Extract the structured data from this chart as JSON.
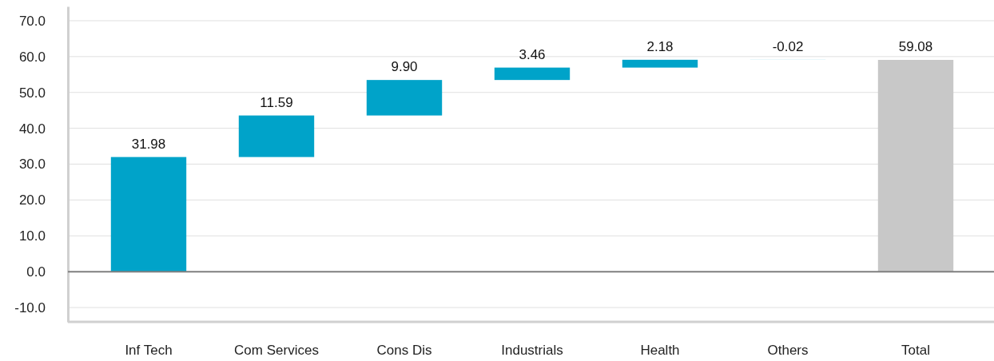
{
  "chart_data": {
    "type": "bar",
    "categories": [
      "Inf Tech",
      "Com Services",
      "Cons Dis",
      "Industrials",
      "Health",
      "Others",
      "Total"
    ],
    "values": [
      31.98,
      11.59,
      9.9,
      3.46,
      2.18,
      -0.02,
      59.08
    ],
    "base": [
      0,
      31.98,
      43.57,
      53.47,
      56.93,
      59.11,
      0
    ],
    "colors": [
      "#00a3c9",
      "#00a3c9",
      "#00a3c9",
      "#00a3c9",
      "#00a3c9",
      "#00a3c9",
      "#c8c8c8"
    ],
    "value_labels": [
      "31.98",
      "11.59",
      "9.90",
      "3.46",
      "2.18",
      "-0.02",
      "59.08"
    ],
    "ylim": [
      -14,
      74
    ],
    "yticks": [
      {
        "value": -10,
        "label": "-10.0"
      },
      {
        "value": 0,
        "label": "0.0"
      },
      {
        "value": 10,
        "label": "10.0"
      },
      {
        "value": 20,
        "label": "20.0"
      },
      {
        "value": 30,
        "label": "30.0"
      },
      {
        "value": 40,
        "label": "40.0"
      },
      {
        "value": 50,
        "label": "50.0"
      },
      {
        "value": 60,
        "label": "60.0"
      },
      {
        "value": 70,
        "label": "70.0"
      }
    ],
    "ref_lines": [
      {
        "axis": "y",
        "value": 0,
        "color": "#808080"
      }
    ],
    "grid": "y"
  }
}
